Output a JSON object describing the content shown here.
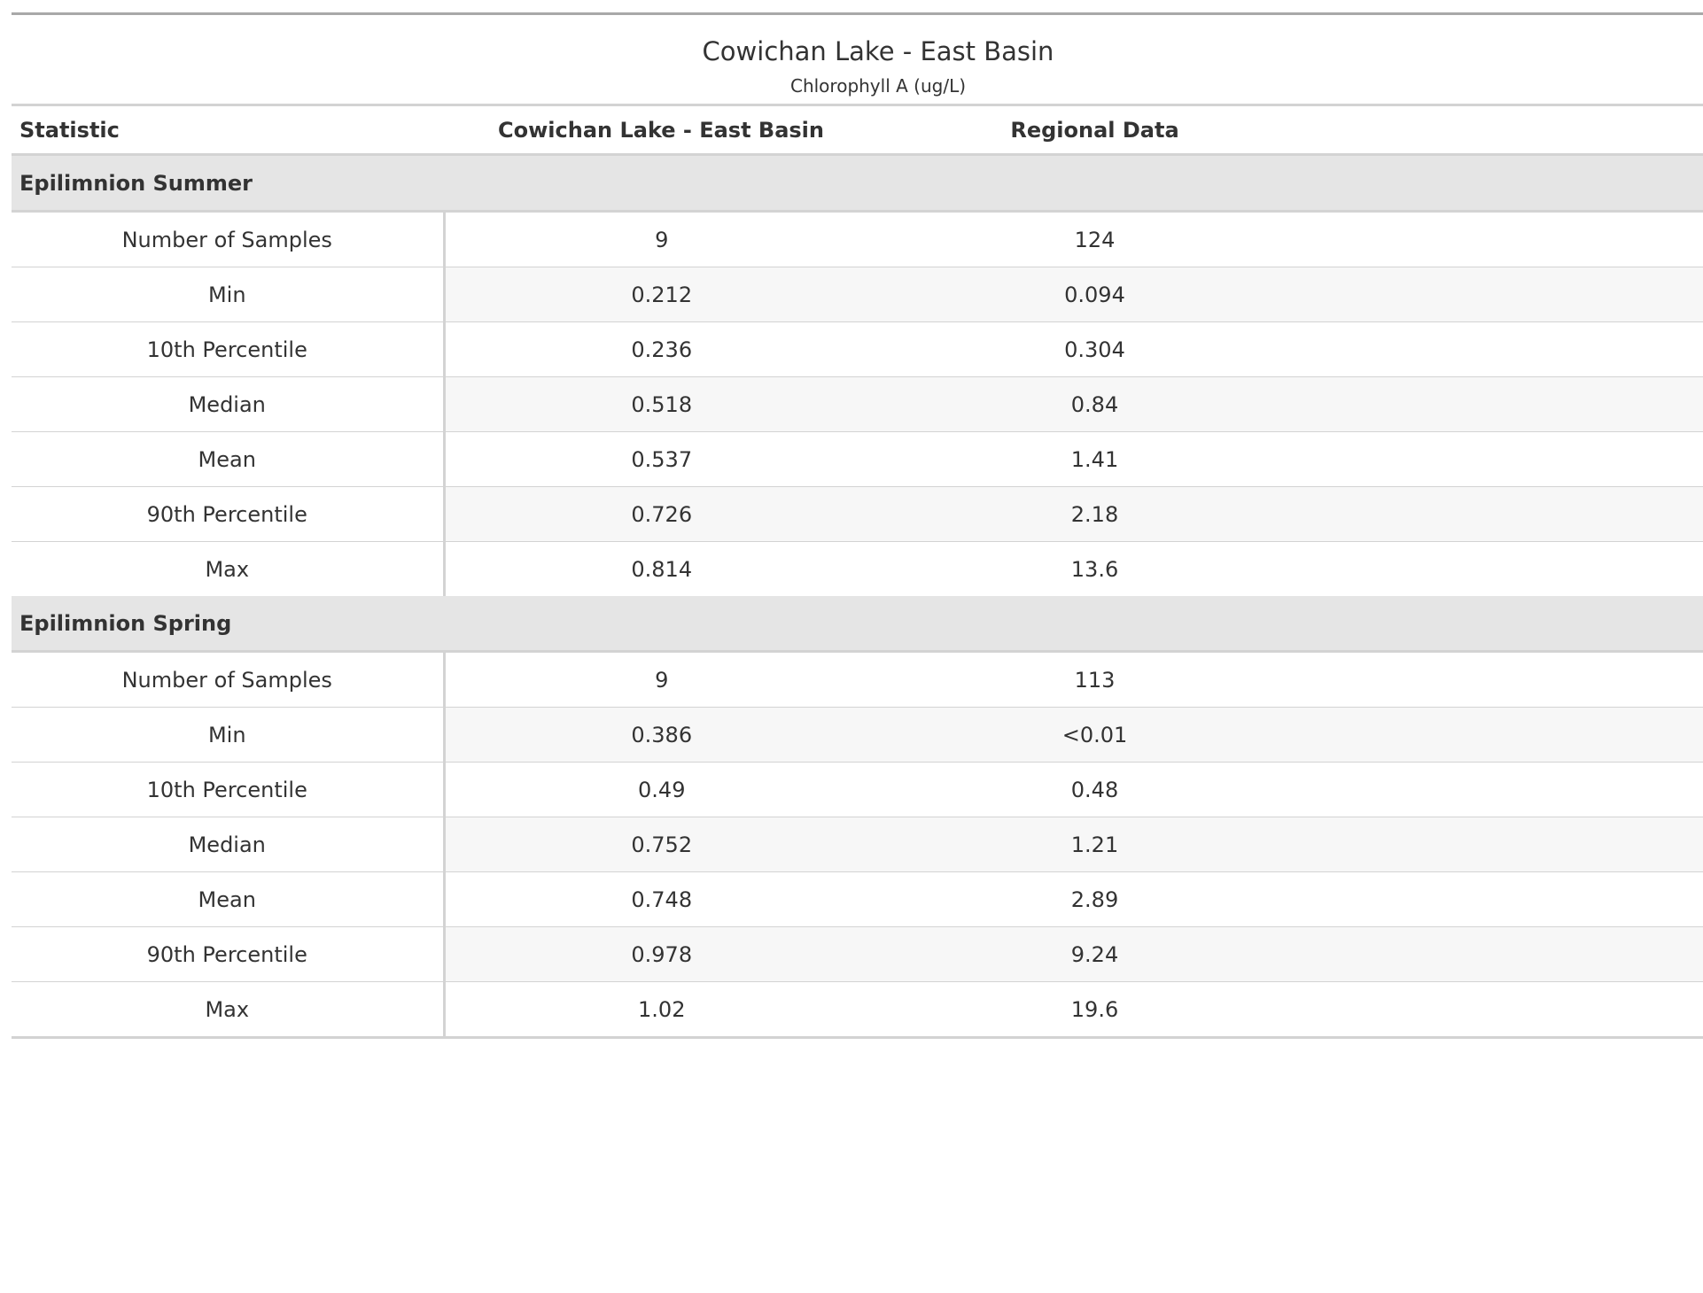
{
  "chart_data": {
    "type": "table",
    "title": "Cowichan Lake - East Basin",
    "subtitle": "Chlorophyll A (ug/L)",
    "columns": [
      "Statistic",
      "Cowichan Lake - East Basin",
      "Regional Data"
    ],
    "groups": [
      {
        "name": "Epilimnion Summer",
        "rows": [
          {
            "statistic": "Number of Samples",
            "lake": "9",
            "regional": "124"
          },
          {
            "statistic": "Min",
            "lake": "0.212",
            "regional": "0.094"
          },
          {
            "statistic": "10th Percentile",
            "lake": "0.236",
            "regional": "0.304"
          },
          {
            "statistic": "Median",
            "lake": "0.518",
            "regional": "0.84"
          },
          {
            "statistic": "Mean",
            "lake": "0.537",
            "regional": "1.41"
          },
          {
            "statistic": "90th Percentile",
            "lake": "0.726",
            "regional": "2.18"
          },
          {
            "statistic": "Max",
            "lake": "0.814",
            "regional": "13.6"
          }
        ]
      },
      {
        "name": "Epilimnion Spring",
        "rows": [
          {
            "statistic": "Number of Samples",
            "lake": "9",
            "regional": "113"
          },
          {
            "statistic": "Min",
            "lake": "0.386",
            "regional": "<0.01"
          },
          {
            "statistic": "10th Percentile",
            "lake": "0.49",
            "regional": "0.48"
          },
          {
            "statistic": "Median",
            "lake": "0.752",
            "regional": "1.21"
          },
          {
            "statistic": "Mean",
            "lake": "0.748",
            "regional": "2.89"
          },
          {
            "statistic": "90th Percentile",
            "lake": "0.978",
            "regional": "9.24"
          },
          {
            "statistic": "Max",
            "lake": "1.02",
            "regional": "19.6"
          }
        ]
      }
    ]
  }
}
